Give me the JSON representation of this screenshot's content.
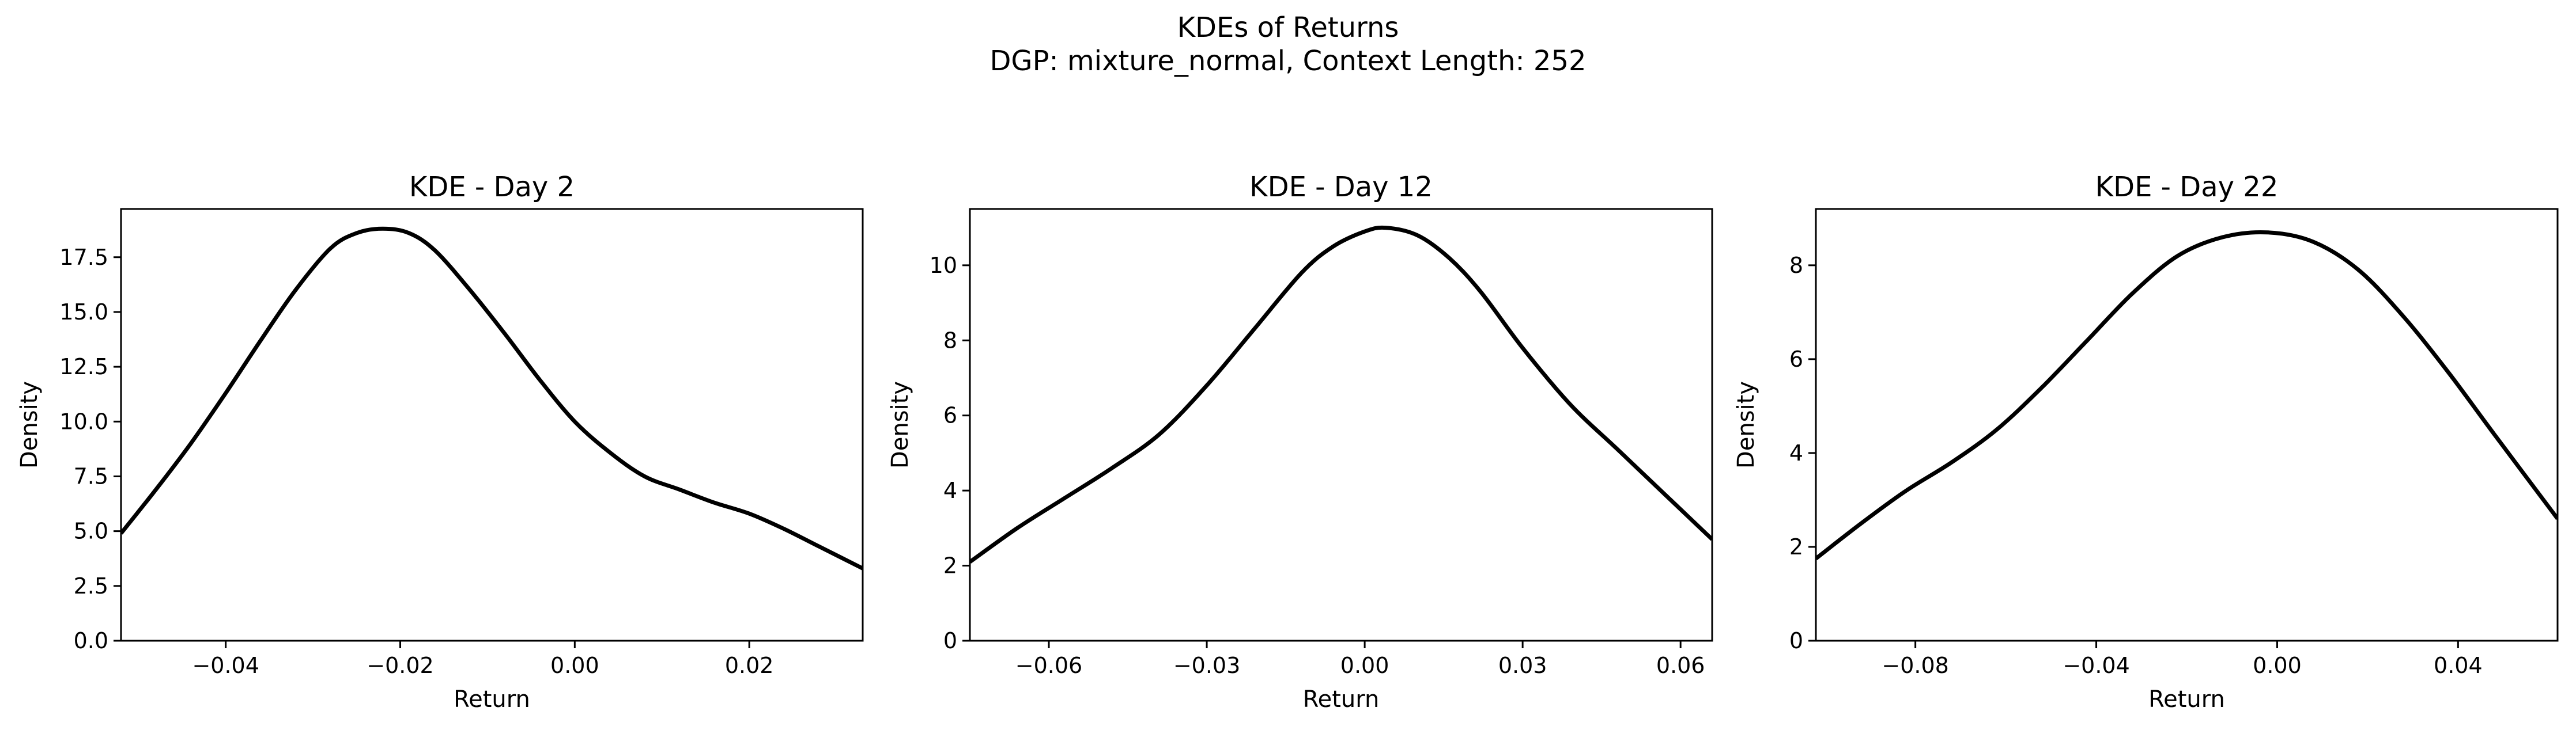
{
  "figure": {
    "title_line1": "KDEs of Returns",
    "title_line2": "DGP: mixture_normal, Context Length: 252"
  },
  "chart_data": [
    {
      "type": "line",
      "title": "KDE - Day 2",
      "xlabel": "Return",
      "ylabel": "Density",
      "xlim": [
        -0.052,
        0.033
      ],
      "ylim": [
        0,
        19.7
      ],
      "xticks": [
        -0.04,
        -0.02,
        0.0,
        0.02
      ],
      "xtick_labels": [
        "−0.04",
        "−0.02",
        "0.00",
        "0.02"
      ],
      "yticks": [
        0,
        2.5,
        5.0,
        7.5,
        10.0,
        12.5,
        15.0,
        17.5
      ],
      "ytick_labels": [
        "0.0",
        "2.5",
        "5.0",
        "7.5",
        "10.0",
        "12.5",
        "15.0",
        "17.5"
      ],
      "line_color": "#000000",
      "x": [
        -0.052,
        -0.048,
        -0.044,
        -0.04,
        -0.036,
        -0.032,
        -0.028,
        -0.025,
        -0.022,
        -0.019,
        -0.016,
        -0.012,
        -0.008,
        -0.004,
        0.0,
        0.004,
        0.008,
        0.012,
        0.016,
        0.02,
        0.024,
        0.028,
        0.033
      ],
      "y": [
        4.9,
        6.9,
        9.0,
        11.3,
        13.7,
        16.0,
        17.9,
        18.6,
        18.8,
        18.6,
        17.8,
        16.0,
        14.0,
        11.9,
        10.0,
        8.6,
        7.5,
        6.9,
        6.3,
        5.8,
        5.1,
        4.3,
        3.3
      ]
    },
    {
      "type": "line",
      "title": "KDE - Day 12",
      "xlabel": "Return",
      "ylabel": "Density",
      "xlim": [
        -0.075,
        0.066
      ],
      "ylim": [
        0,
        11.5
      ],
      "xticks": [
        -0.06,
        -0.03,
        0.0,
        0.03,
        0.06
      ],
      "xtick_labels": [
        "−0.06",
        "−0.03",
        "0.00",
        "0.03",
        "0.06"
      ],
      "yticks": [
        0,
        2,
        4,
        6,
        8,
        10
      ],
      "ytick_labels": [
        "0",
        "2",
        "4",
        "6",
        "8",
        "10"
      ],
      "line_color": "#000000",
      "x": [
        -0.075,
        -0.066,
        -0.057,
        -0.048,
        -0.039,
        -0.03,
        -0.021,
        -0.012,
        -0.006,
        0.0,
        0.004,
        0.01,
        0.016,
        0.022,
        0.03,
        0.039,
        0.048,
        0.057,
        0.066
      ],
      "y": [
        2.1,
        3.0,
        3.8,
        4.6,
        5.5,
        6.8,
        8.3,
        9.8,
        10.5,
        10.9,
        11.0,
        10.8,
        10.2,
        9.3,
        7.8,
        6.3,
        5.1,
        3.9,
        2.7
      ]
    },
    {
      "type": "line",
      "title": "KDE - Day 22",
      "xlabel": "Return",
      "ylabel": "Density",
      "xlim": [
        -0.102,
        0.062
      ],
      "ylim": [
        0,
        9.2
      ],
      "xticks": [
        -0.08,
        -0.04,
        0.0,
        0.04
      ],
      "xtick_labels": [
        "−0.08",
        "−0.04",
        "0.00",
        "0.04"
      ],
      "yticks": [
        0,
        2,
        4,
        6,
        8
      ],
      "ytick_labels": [
        "0",
        "2",
        "4",
        "6",
        "8"
      ],
      "line_color": "#000000",
      "x": [
        -0.102,
        -0.092,
        -0.082,
        -0.072,
        -0.062,
        -0.052,
        -0.042,
        -0.032,
        -0.022,
        -0.012,
        -0.002,
        0.008,
        0.018,
        0.028,
        0.038,
        0.048,
        0.062
      ],
      "y": [
        1.75,
        2.5,
        3.2,
        3.8,
        4.5,
        5.4,
        6.4,
        7.4,
        8.2,
        8.6,
        8.7,
        8.5,
        7.9,
        6.9,
        5.7,
        4.4,
        2.6
      ]
    }
  ]
}
